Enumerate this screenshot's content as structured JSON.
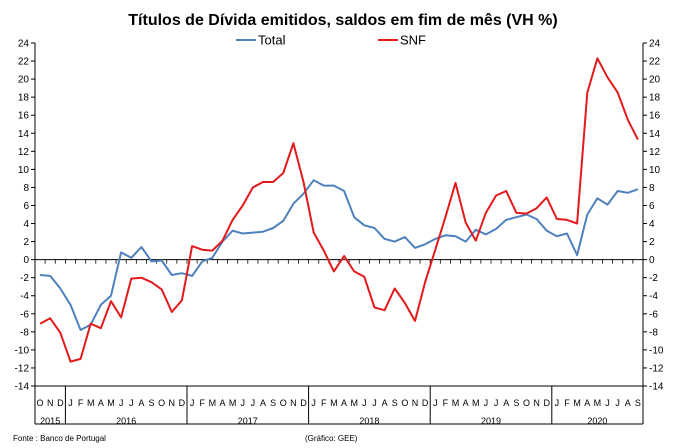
{
  "chart_data": {
    "type": "line",
    "title": "Títulos de Dívida emitidos, saldos em fim de mês  (VH %)",
    "xlabel": "",
    "ylabel": "",
    "ylim": [
      -14,
      24
    ],
    "y_ticks": [
      -14,
      -12,
      -10,
      -8,
      -6,
      -4,
      -2,
      0,
      2,
      4,
      6,
      8,
      10,
      12,
      14,
      16,
      18,
      20,
      22,
      24
    ],
    "secondary_y_axis": true,
    "grid": false,
    "legend_position": "top-center",
    "x": [
      "2015-10",
      "2015-11",
      "2015-12",
      "2016-01",
      "2016-02",
      "2016-03",
      "2016-04",
      "2016-05",
      "2016-06",
      "2016-07",
      "2016-08",
      "2016-09",
      "2016-10",
      "2016-11",
      "2016-12",
      "2017-01",
      "2017-02",
      "2017-03",
      "2017-04",
      "2017-05",
      "2017-06",
      "2017-07",
      "2017-08",
      "2017-09",
      "2017-10",
      "2017-11",
      "2017-12",
      "2018-01",
      "2018-02",
      "2018-03",
      "2018-04",
      "2018-05",
      "2018-06",
      "2018-07",
      "2018-08",
      "2018-09",
      "2018-10",
      "2018-11",
      "2018-12",
      "2019-01",
      "2019-02",
      "2019-03",
      "2019-04",
      "2019-05",
      "2019-06",
      "2019-07",
      "2019-08",
      "2019-09",
      "2019-10",
      "2019-11",
      "2019-12",
      "2020-01",
      "2020-02",
      "2020-03",
      "2020-04",
      "2020-05",
      "2020-06",
      "2020-07",
      "2020-08",
      "2020-09"
    ],
    "month_labels": [
      "O",
      "N",
      "D",
      "J",
      "F",
      "M",
      "A",
      "M",
      "J",
      "J",
      "A",
      "S",
      "O",
      "N",
      "D",
      "J",
      "F",
      "M",
      "A",
      "M",
      "J",
      "J",
      "A",
      "S",
      "O",
      "N",
      "D",
      "J",
      "F",
      "M",
      "A",
      "M",
      "J",
      "J",
      "A",
      "S",
      "O",
      "N",
      "D",
      "J",
      "F",
      "M",
      "A",
      "M",
      "J",
      "J",
      "A",
      "S",
      "O",
      "N",
      "D",
      "J",
      "F",
      "M",
      "A",
      "M",
      "J",
      "J",
      "A",
      "S"
    ],
    "year_groups": [
      {
        "label": "2015",
        "start": 0,
        "count": 3
      },
      {
        "label": "2016",
        "start": 3,
        "count": 12
      },
      {
        "label": "2017",
        "start": 15,
        "count": 12
      },
      {
        "label": "2018",
        "start": 27,
        "count": 12
      },
      {
        "label": "2019",
        "start": 39,
        "count": 12
      },
      {
        "label": "2020",
        "start": 51,
        "count": 9
      }
    ],
    "series": [
      {
        "name": "Total",
        "color": "#4f81bd",
        "values": [
          -1.7,
          -1.8,
          -3.2,
          -5.0,
          -7.8,
          -7.2,
          -5.0,
          -4.0,
          0.8,
          0.2,
          1.4,
          -0.2,
          -0.1,
          -1.7,
          -1.5,
          -1.8,
          -0.2,
          0.2,
          2.0,
          3.2,
          2.9,
          3.0,
          3.1,
          3.5,
          4.3,
          6.2,
          7.3,
          8.8,
          8.2,
          8.2,
          7.6,
          4.7,
          3.8,
          3.5,
          2.3,
          2.0,
          2.5,
          1.3,
          1.7,
          2.3,
          2.7,
          2.6,
          2.0,
          3.3,
          2.8,
          3.4,
          4.4,
          4.7,
          5.0,
          4.5,
          3.2,
          2.6,
          2.9,
          0.5,
          5.0,
          6.8,
          6.1,
          7.6,
          7.4,
          7.8
        ]
      },
      {
        "name": "SNF",
        "color": "#e31a1c",
        "values": [
          -7.1,
          -6.5,
          -8.1,
          -11.3,
          -11.0,
          -7.1,
          -7.6,
          -4.6,
          -6.4,
          -2.1,
          -2.0,
          -2.5,
          -3.3,
          -5.8,
          -4.5,
          1.5,
          1.1,
          1.0,
          2.1,
          4.4,
          6.0,
          8.0,
          8.6,
          8.6,
          9.6,
          12.9,
          8.6,
          3.0,
          1.0,
          -1.3,
          0.4,
          -1.3,
          -1.9,
          -5.3,
          -5.6,
          -3.2,
          -4.8,
          -6.8,
          -2.5,
          1.1,
          4.7,
          8.5,
          4.1,
          2.1,
          5.2,
          7.1,
          7.6,
          5.2,
          5.1,
          5.7,
          6.9,
          4.5,
          4.4,
          4.0,
          18.5,
          22.3,
          20.2,
          18.5,
          15.5,
          13.3
        ]
      }
    ]
  },
  "footer": {
    "source": "Fonte : Banco de Portugal",
    "credit": "(Gráfico: GEE)"
  }
}
